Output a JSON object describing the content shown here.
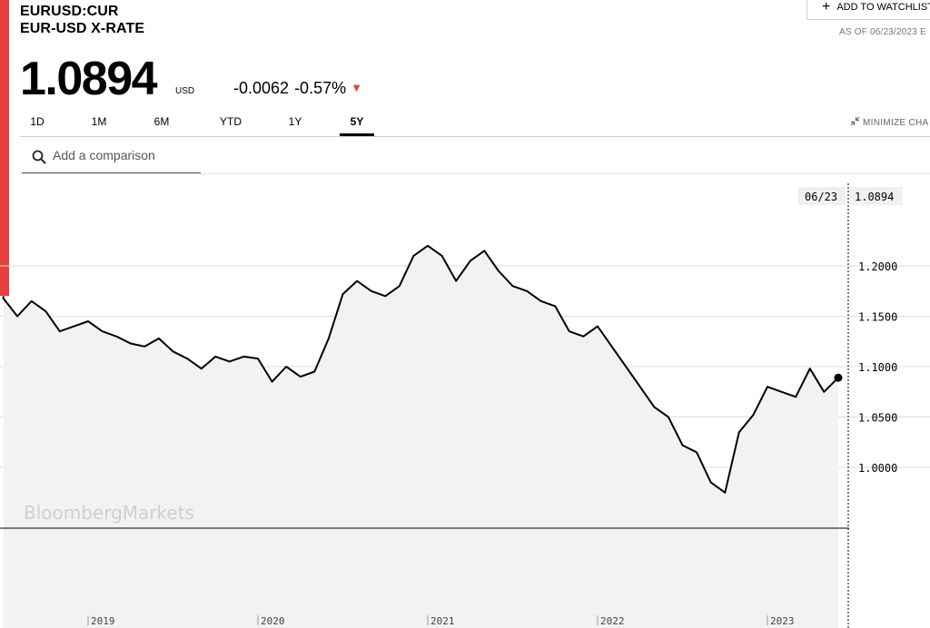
{
  "header": {
    "symbol": "EURUSD:CUR",
    "name": "EUR-USD X-RATE",
    "price": "1.0894",
    "currency": "USD",
    "change": "-0.0062",
    "change_pct": "-0.57%",
    "direction_arrow": "▼",
    "watchlist_label": "ADD TO WATCHLIST",
    "as_of": "AS OF 06/23/2023 E"
  },
  "tabs": [
    {
      "label": "1D"
    },
    {
      "label": "1M"
    },
    {
      "label": "6M"
    },
    {
      "label": "YTD"
    },
    {
      "label": "1Y"
    },
    {
      "label": "5Y",
      "active": true
    }
  ],
  "minimize_label": "MINIMIZE CHA",
  "search": {
    "placeholder": "Add a comparison"
  },
  "colors": {
    "accent_red": "#e8413d",
    "line": "#000000",
    "area_fill": "#f2f2f2",
    "grid": "#dddddd"
  },
  "chart_data": {
    "type": "area",
    "watermark": "BloombergMarkets",
    "x_labels": [
      "2019",
      "2020",
      "2021",
      "2022",
      "2023"
    ],
    "y_ticks": [
      "1.2000",
      "1.1500",
      "1.1000",
      "1.0500",
      "1.0000"
    ],
    "ylim": [
      0.935,
      1.25
    ],
    "grid": true,
    "crosshair": {
      "date_label": "06/23",
      "value_label": "1.0894"
    },
    "series": [
      {
        "x": [
          "2018-06",
          "2018-07",
          "2018-08",
          "2018-09",
          "2018-10",
          "2018-11",
          "2018-12",
          "2019-01",
          "2019-02",
          "2019-03",
          "2019-04",
          "2019-05",
          "2019-06",
          "2019-07",
          "2019-08",
          "2019-09",
          "2019-10",
          "2019-11",
          "2019-12",
          "2020-01",
          "2020-02",
          "2020-03",
          "2020-04",
          "2020-05",
          "2020-06",
          "2020-07",
          "2020-08",
          "2020-09",
          "2020-10",
          "2020-11",
          "2020-12",
          "2021-01",
          "2021-02",
          "2021-03",
          "2021-04",
          "2021-05",
          "2021-06",
          "2021-07",
          "2021-08",
          "2021-09",
          "2021-10",
          "2021-11",
          "2021-12",
          "2022-01",
          "2022-02",
          "2022-03",
          "2022-04",
          "2022-05",
          "2022-06",
          "2022-07",
          "2022-08",
          "2022-09",
          "2022-10",
          "2022-11",
          "2022-12",
          "2023-01",
          "2023-02",
          "2023-03",
          "2023-04",
          "2023-05",
          "2023-06"
        ],
        "values": [
          1.17,
          1.168,
          1.15,
          1.165,
          1.155,
          1.135,
          1.14,
          1.145,
          1.135,
          1.13,
          1.123,
          1.12,
          1.128,
          1.115,
          1.108,
          1.098,
          1.11,
          1.105,
          1.11,
          1.108,
          1.085,
          1.1,
          1.09,
          1.095,
          1.128,
          1.172,
          1.185,
          1.175,
          1.17,
          1.18,
          1.21,
          1.22,
          1.21,
          1.185,
          1.205,
          1.215,
          1.195,
          1.18,
          1.175,
          1.165,
          1.16,
          1.135,
          1.13,
          1.14,
          1.12,
          1.1,
          1.08,
          1.06,
          1.05,
          1.022,
          1.015,
          0.985,
          0.975,
          1.035,
          1.052,
          1.08,
          1.075,
          1.07,
          1.098,
          1.075,
          1.089
        ]
      }
    ]
  }
}
